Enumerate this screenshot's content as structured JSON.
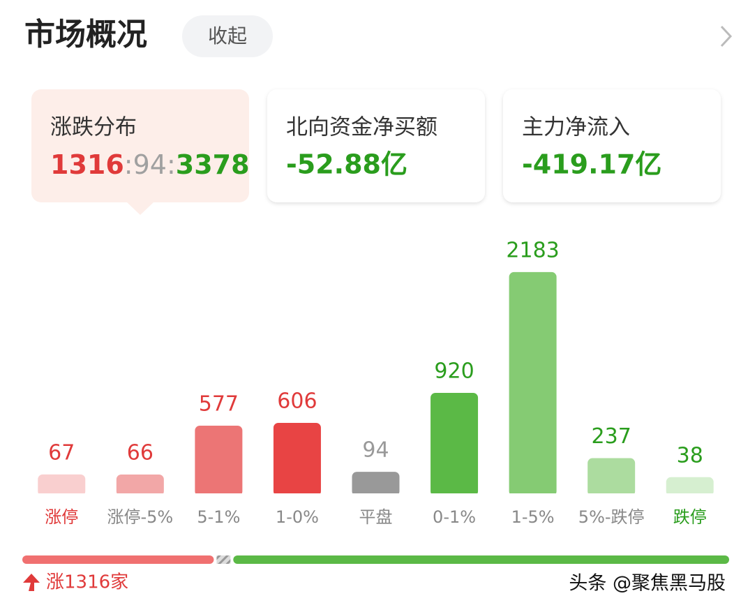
{
  "header": {
    "title": "市场概况",
    "button": "收起"
  },
  "breadth": {
    "up": 1316,
    "separator": ":",
    "flat": 94,
    "down": 3378,
    "colors": {
      "up": "#e03a3a",
      "flat": "#a0a0a0",
      "down": "#2a9d1d"
    }
  },
  "cards": [
    {
      "title": "涨跌分布"
    },
    {
      "title": "北向资金净买额",
      "value": "-52.88亿"
    },
    {
      "title": "主力净流入",
      "value": "-419.17亿"
    }
  ],
  "chart_data": {
    "type": "bar",
    "categories": [
      "涨停",
      "涨停-5%",
      "5-1%",
      "1-0%",
      "平盘",
      "0-1%",
      "1-5%",
      "5%-跌停",
      "跌停"
    ],
    "values": [
      67,
      66,
      577,
      606,
      94,
      920,
      2183,
      237,
      38
    ],
    "colors": [
      "#f9cfcf",
      "#f2a7a7",
      "#ec7575",
      "#e84444",
      "#999999",
      "#5bb946",
      "#85cb73",
      "#acdc9f",
      "#d6efd0"
    ],
    "value_label_colors": [
      "#e03a3a",
      "#e03a3a",
      "#e03a3a",
      "#e03a3a",
      "#999999",
      "#2a9d1d",
      "#2a9d1d",
      "#2a9d1d",
      "#2a9d1d"
    ],
    "category_label_colors": [
      "#e03a3a",
      "#888888",
      "#888888",
      "#888888",
      "#888888",
      "#888888",
      "#888888",
      "#888888",
      "#2a9d1d"
    ]
  },
  "footer": {
    "up_label": "涨1316家",
    "watermark": "头条 @聚焦黑马股"
  }
}
